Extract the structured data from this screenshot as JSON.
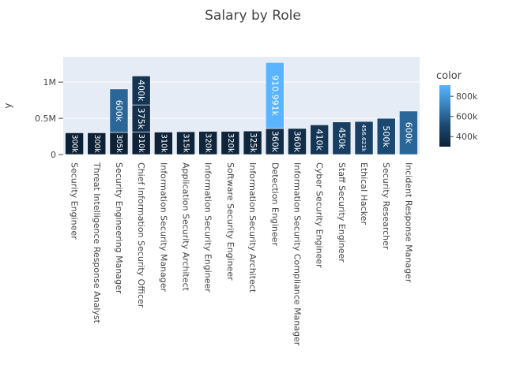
{
  "chart_data": {
    "type": "bar",
    "title": "Salary by Role",
    "xlabel": "",
    "ylabel": "y",
    "ylim": [
      0,
      1350000
    ],
    "y_ticks": [
      0,
      500000,
      1000000
    ],
    "y_tick_labels": [
      "0",
      "0.5M",
      "1M"
    ],
    "grid": true,
    "barmode": "stack",
    "categories": [
      "Security Engineer",
      "Threat Intelligence Response Analyst",
      "Security Engineering Manager",
      "Chief Information Security Officer",
      "Information Security Manager",
      "Application Security Architect",
      "Information Security Engineer",
      "Software Security Engineer",
      "Information Security Architect",
      "Detection Engineer",
      "Information Security Compliance Manager",
      "Cyber Security Engineer",
      "Staff Security Engineer",
      "Ethical Hacker",
      "Security Researcher",
      "Incident Response Manager"
    ],
    "segments": [
      {
        "category": "Security Engineer",
        "value": 300000,
        "label": "300k"
      },
      {
        "category": "Threat Intelligence Response Analyst",
        "value": 300000,
        "label": "300k"
      },
      {
        "category": "Security Engineering Manager",
        "value": 305000,
        "label": "305k"
      },
      {
        "category": "Security Engineering Manager",
        "value": 600000,
        "label": "600k"
      },
      {
        "category": "Chief Information Security Officer",
        "value": 310000,
        "label": "310k"
      },
      {
        "category": "Chief Information Security Officer",
        "value": 375000,
        "label": "375k"
      },
      {
        "category": "Chief Information Security Officer",
        "value": 400000,
        "label": "400k"
      },
      {
        "category": "Information Security Manager",
        "value": 310000,
        "label": "310k"
      },
      {
        "category": "Application Security Architect",
        "value": 315000,
        "label": "315k"
      },
      {
        "category": "Information Security Engineer",
        "value": 320000,
        "label": "320k"
      },
      {
        "category": "Software Security Engineer",
        "value": 320000,
        "label": "320k"
      },
      {
        "category": "Information Security Architect",
        "value": 325000,
        "label": "325k"
      },
      {
        "category": "Detection Engineer",
        "value": 360000,
        "label": "360k"
      },
      {
        "category": "Detection Engineer",
        "value": 910991,
        "label": "910.991k"
      },
      {
        "category": "Information Security Compliance Manager",
        "value": 360000,
        "label": "360k"
      },
      {
        "category": "Cyber Security Engineer",
        "value": 410000,
        "label": "410k"
      },
      {
        "category": "Staff Security Engineer",
        "value": 450000,
        "label": "450k"
      },
      {
        "category": "Ethical Hacker",
        "value": 456621,
        "label": "456.621k"
      },
      {
        "category": "Security Researcher",
        "value": 500000,
        "label": "500k"
      },
      {
        "category": "Incident Response Manager",
        "value": 600000,
        "label": "600k"
      }
    ],
    "colorscale": {
      "title": "color",
      "range": [
        300000,
        910991
      ],
      "ticks": [
        400000,
        600000,
        800000
      ],
      "tick_labels": [
        "400k",
        "600k",
        "800k"
      ],
      "stops": [
        "#0d2136",
        "#1c4a73",
        "#3c86c2",
        "#5ab4ff"
      ]
    }
  }
}
